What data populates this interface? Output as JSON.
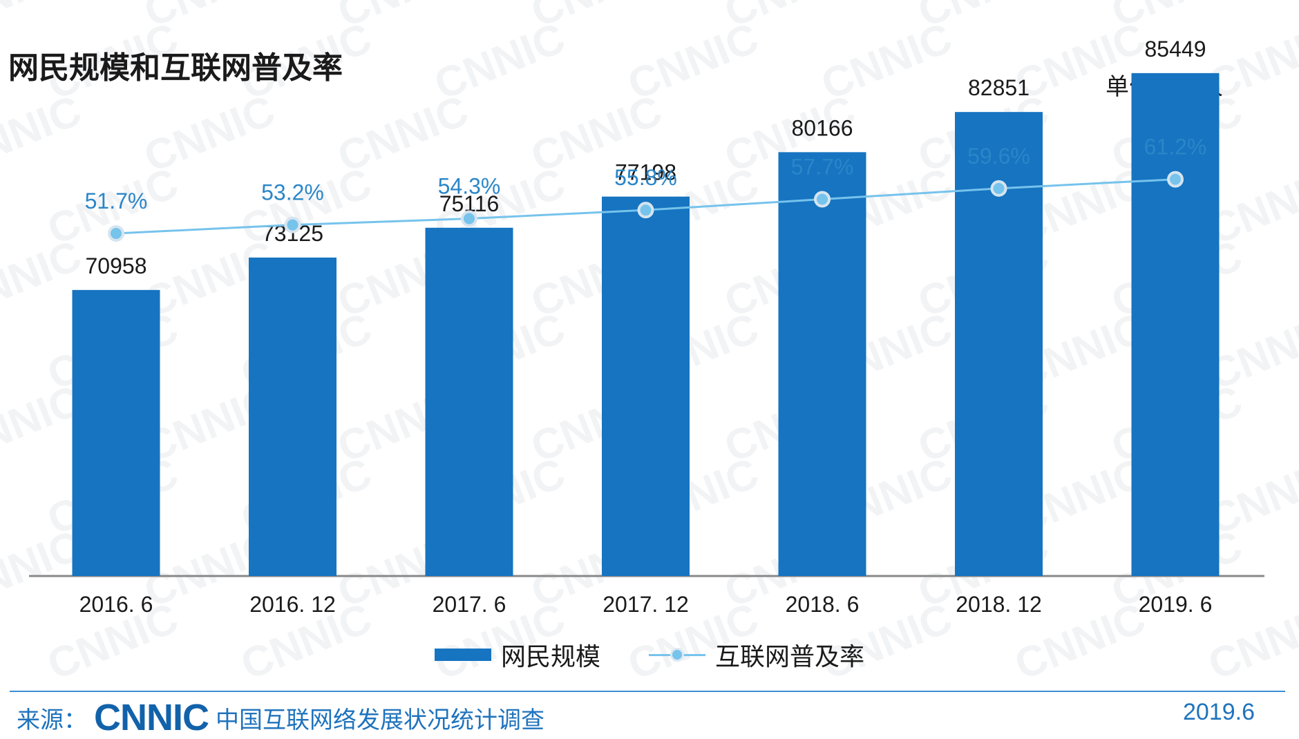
{
  "header": {
    "title": "网民规模和互联网普及率",
    "unit": "单位：万人"
  },
  "chart_data": {
    "type": "bar",
    "categories": [
      "2016. 6",
      "2016. 12",
      "2017. 6",
      "2017. 12",
      "2018. 6",
      "2018. 12",
      "2019. 6"
    ],
    "series": [
      {
        "name": "网民规模",
        "type": "bar",
        "values": [
          70958,
          73125,
          75116,
          77198,
          80166,
          82851,
          85449
        ],
        "color": "#1674c1"
      },
      {
        "name": "互联网普及率",
        "type": "line",
        "values": [
          51.7,
          53.2,
          54.3,
          55.8,
          57.7,
          59.6,
          61.2
        ],
        "labels": [
          "51.7%",
          "53.2%",
          "54.3%",
          "55.8%",
          "57.7%",
          "59.6%",
          "61.2%"
        ],
        "color": "#76c3ec",
        "label_color": "#2b86c8"
      }
    ],
    "legend": "bottom-center",
    "grid": false
  },
  "legend": {
    "bar_label": "网民规模",
    "line_label": "互联网普及率"
  },
  "footer": {
    "source_label": "来源：",
    "logo": "CNNIC",
    "org_name": "中国互联网络发展状况统计调查",
    "date": "2019.6"
  },
  "watermark": "CNNIC",
  "colors": {
    "bar": "#1674c1",
    "line": "#76c3ec",
    "accent_text": "#1f73bd"
  }
}
